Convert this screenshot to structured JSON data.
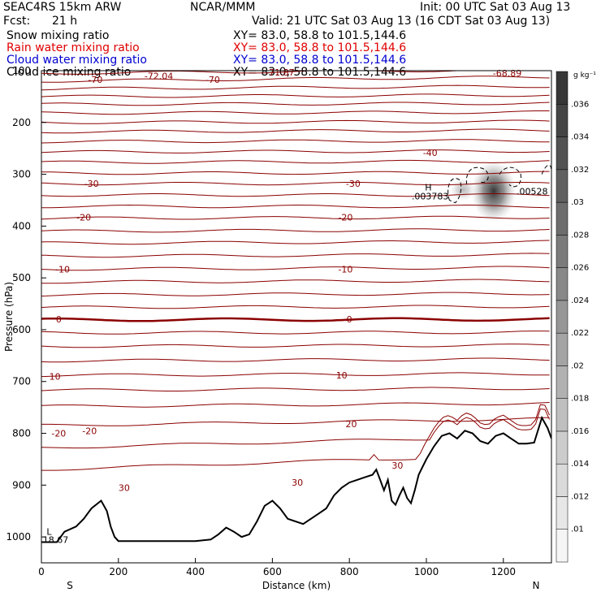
{
  "header": {
    "model": "SEAC4RS 15km ARW",
    "org": "NCAR/MMM",
    "init": "Init: 00 UTC Sat 03 Aug 13",
    "fcst_label": "Fcst:",
    "fcst_value": "21 h",
    "valid": "Valid: 21 UTC Sat 03 Aug 13 (16 CDT Sat 03 Aug 13)"
  },
  "legend": [
    {
      "name": "Snow mixing ratio",
      "xy": "XY=  83.0, 58.8 to 101.5,144.6",
      "color": "#000000"
    },
    {
      "name": "Rain water mixing ratio",
      "xy": "XY=  83.0, 58.8 to 101.5,144.6",
      "color": "#e00000"
    },
    {
      "name": "Cloud water mixing ratio",
      "xy": "XY=  83.0, 58.8 to 101.5,144.6",
      "color": "#0000d0"
    },
    {
      "name": "Cloud ice mixing ratio",
      "xy": "XY=  83.0, 58.8 to 101.5,144.6",
      "color": "#000000"
    }
  ],
  "colors": {
    "isotherm": "#8b0000",
    "terrain": "#000000",
    "axis": "#000000"
  },
  "chart_data": {
    "type": "line",
    "xlabel": "Distance (km)",
    "ylabel": "Pressure (hPa)",
    "xlim": [
      0,
      1325
    ],
    "ylim": [
      1050,
      100
    ],
    "x_ticks": [
      0,
      200,
      400,
      600,
      800,
      1000,
      1200
    ],
    "y_ticks": [
      100,
      200,
      300,
      400,
      500,
      600,
      700,
      800,
      900,
      1000
    ],
    "y_tick_labels": [
      "100",
      "200",
      "300",
      "400",
      "500",
      "600",
      "700",
      "800",
      "900",
      "1000"
    ],
    "end_labels": {
      "left": "S",
      "right": "N"
    },
    "isotherm_levels": [
      {
        "p0": 105,
        "p1": 98,
        "label": ""
      },
      {
        "p0": 120,
        "p1": 112,
        "label": "-70"
      },
      {
        "p0": 135,
        "p1": 130,
        "label": ""
      },
      {
        "p0": 150,
        "p1": 147,
        "label": ""
      },
      {
        "p0": 165,
        "p1": 163,
        "label": ""
      },
      {
        "p0": 182,
        "p1": 180,
        "label": ""
      },
      {
        "p0": 200,
        "p1": 198,
        "label": ""
      },
      {
        "p0": 218,
        "p1": 215,
        "label": ""
      },
      {
        "p0": 237,
        "p1": 235,
        "label": ""
      },
      {
        "p0": 257,
        "p1": 255,
        "label": "-40"
      },
      {
        "p0": 277,
        "p1": 275,
        "label": ""
      },
      {
        "p0": 298,
        "p1": 297,
        "label": ""
      },
      {
        "p0": 318,
        "p1": 318,
        "label": "-30"
      },
      {
        "p0": 340,
        "p1": 340,
        "label": ""
      },
      {
        "p0": 362,
        "p1": 362,
        "label": ""
      },
      {
        "p0": 385,
        "p1": 383,
        "label": "-20"
      },
      {
        "p0": 410,
        "p1": 407,
        "label": ""
      },
      {
        "p0": 433,
        "p1": 430,
        "label": ""
      },
      {
        "p0": 458,
        "p1": 455,
        "label": ""
      },
      {
        "p0": 483,
        "p1": 480,
        "label": "-10"
      },
      {
        "p0": 508,
        "p1": 505,
        "label": ""
      },
      {
        "p0": 533,
        "p1": 530,
        "label": ""
      },
      {
        "p0": 557,
        "p1": 555,
        "label": ""
      },
      {
        "p0": 581,
        "p1": 580,
        "label": "0"
      },
      {
        "p0": 606,
        "p1": 605,
        "label": ""
      },
      {
        "p0": 632,
        "p1": 630,
        "label": ""
      },
      {
        "p0": 660,
        "p1": 657,
        "label": ""
      },
      {
        "p0": 688,
        "p1": 685,
        "label": "10"
      },
      {
        "p0": 717,
        "p1": 713,
        "label": ""
      },
      {
        "p0": 748,
        "p1": 742,
        "label": ""
      },
      {
        "p0": 785,
        "p1": 772,
        "label": "20"
      },
      {
        "p0": 828,
        "p1": 805,
        "label": ""
      },
      {
        "p0": 870,
        "p1": 840,
        "label": "30"
      }
    ],
    "contour_labels": [
      {
        "x": 140,
        "p": 117,
        "text": "-70"
      },
      {
        "x": 305,
        "p": 110,
        "text": "-72.04"
      },
      {
        "x": 445,
        "p": 117,
        "text": "-70"
      },
      {
        "x": 620,
        "p": 103,
        "text": "-71.87"
      },
      {
        "x": 1210,
        "p": 105,
        "text": "-68.89"
      },
      {
        "x": 1010,
        "p": 258,
        "text": "-40"
      },
      {
        "x": 130,
        "p": 318,
        "text": "-30"
      },
      {
        "x": 810,
        "p": 318,
        "text": "-30"
      },
      {
        "x": 110,
        "p": 383,
        "text": "-20"
      },
      {
        "x": 790,
        "p": 383,
        "text": "-20"
      },
      {
        "x": 55,
        "p": 483,
        "text": "-10"
      },
      {
        "x": 790,
        "p": 483,
        "text": "-10"
      },
      {
        "x": 45,
        "p": 580,
        "text": "0"
      },
      {
        "x": 800,
        "p": 580,
        "text": "0"
      },
      {
        "x": 35,
        "p": 690,
        "text": "10"
      },
      {
        "x": 780,
        "p": 688,
        "text": "10"
      },
      {
        "x": 45,
        "p": 800,
        "text": "-20"
      },
      {
        "x": 125,
        "p": 795,
        "text": "-20"
      },
      {
        "x": 805,
        "p": 782,
        "text": "20"
      },
      {
        "x": 215,
        "p": 905,
        "text": "30"
      },
      {
        "x": 665,
        "p": 895,
        "text": "30"
      },
      {
        "x": 925,
        "p": 862,
        "text": "30"
      }
    ],
    "marks": [
      {
        "x": 1005,
        "p": 325,
        "text": "H"
      },
      {
        "x": 1010,
        "p": 342,
        "text": ".003783"
      },
      {
        "x": 1275,
        "p": 333,
        "text": ".00528"
      },
      {
        "x": 20,
        "p": 990,
        "text": "L"
      },
      {
        "x": 37,
        "p": 1005,
        "text": "18.67"
      }
    ],
    "terrain": {
      "x": [
        0,
        40,
        60,
        90,
        110,
        130,
        155,
        170,
        180,
        190,
        200,
        220,
        260,
        300,
        350,
        400,
        440,
        460,
        480,
        500,
        520,
        540,
        560,
        580,
        600,
        620,
        640,
        660,
        680,
        700,
        720,
        740,
        760,
        780,
        800,
        820,
        840,
        860,
        870,
        880,
        890,
        900,
        910,
        920,
        930,
        940,
        950,
        960,
        970,
        980,
        990,
        1000,
        1020,
        1040,
        1060,
        1080,
        1100,
        1120,
        1140,
        1160,
        1180,
        1200,
        1220,
        1240,
        1260,
        1280,
        1300,
        1315,
        1325
      ],
      "p": [
        1010,
        1010,
        990,
        980,
        965,
        945,
        930,
        950,
        980,
        1000,
        1008,
        1008,
        1008,
        1008,
        1008,
        1008,
        1005,
        995,
        982,
        990,
        1000,
        995,
        970,
        940,
        930,
        945,
        965,
        970,
        975,
        965,
        955,
        945,
        920,
        905,
        895,
        890,
        885,
        880,
        870,
        890,
        910,
        890,
        930,
        938,
        920,
        905,
        925,
        935,
        910,
        880,
        865,
        850,
        825,
        805,
        800,
        810,
        795,
        800,
        815,
        820,
        805,
        800,
        810,
        820,
        820,
        818,
        770,
        790,
        810
      ]
    },
    "ice_shading": {
      "units": "g kg-1",
      "center": {
        "x": 1175,
        "p": 333
      },
      "max": 0.035
    },
    "colorbar": {
      "units": "g kg⁻¹",
      "levels": [
        ".01",
        ".012",
        ".014",
        ".016",
        ".018",
        ".02",
        ".022",
        ".024",
        ".026",
        ".028",
        ".03",
        ".032",
        ".034",
        ".036"
      ]
    }
  }
}
